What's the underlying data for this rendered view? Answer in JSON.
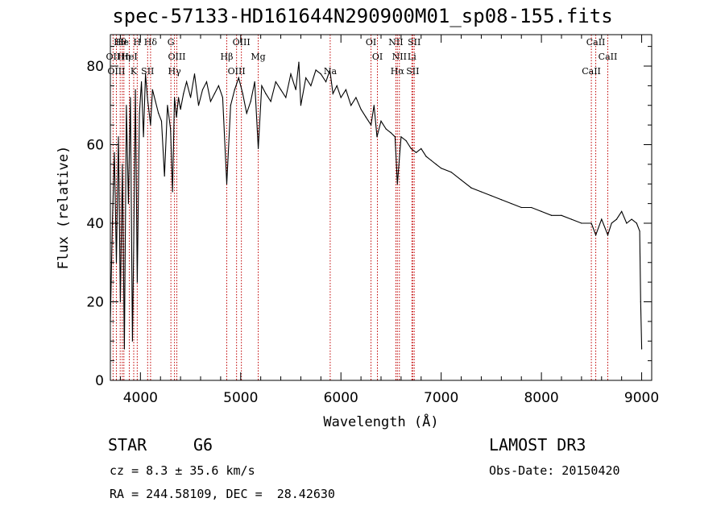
{
  "chart_data": {
    "type": "line",
    "title": "spec-57133-HD161644N290900M01_sp08-155.fits",
    "xlabel": "Wavelength (Å)",
    "ylabel": "Flux (relative)",
    "xlim": [
      3700,
      9100
    ],
    "ylim": [
      0,
      88
    ],
    "xticks": [
      4000,
      5000,
      6000,
      7000,
      8000,
      9000
    ],
    "xtick_labels": [
      "4000",
      "5000",
      "6000",
      "7000",
      "8000",
      "9000"
    ],
    "yticks": [
      0,
      20,
      40,
      60,
      80
    ],
    "ytick_labels": [
      "0",
      "20",
      "40",
      "60",
      "80"
    ],
    "series": [
      {
        "name": "spectrum",
        "x": [
          3700,
          3720,
          3740,
          3760,
          3780,
          3800,
          3820,
          3840,
          3860,
          3880,
          3900,
          3920,
          3933,
          3950,
          3968,
          3990,
          4010,
          4030,
          4050,
          4070,
          4101,
          4120,
          4150,
          4180,
          4210,
          4240,
          4270,
          4300,
          4320,
          4340,
          4360,
          4380,
          4400,
          4430,
          4460,
          4500,
          4540,
          4580,
          4620,
          4660,
          4700,
          4740,
          4780,
          4820,
          4861,
          4900,
          4940,
          4980,
          5020,
          5060,
          5100,
          5140,
          5175,
          5210,
          5250,
          5300,
          5350,
          5400,
          5450,
          5500,
          5550,
          5580,
          5600,
          5650,
          5700,
          5750,
          5800,
          5850,
          5890,
          5920,
          5960,
          6000,
          6050,
          6100,
          6150,
          6200,
          6250,
          6300,
          6330,
          6360,
          6400,
          6450,
          6500,
          6540,
          6563,
          6600,
          6650,
          6700,
          6750,
          6800,
          6850,
          6900,
          6950,
          7000,
          7100,
          7200,
          7300,
          7400,
          7500,
          7600,
          7700,
          7800,
          7900,
          8000,
          8100,
          8200,
          8300,
          8400,
          8498,
          8542,
          8600,
          8662,
          8700,
          8750,
          8800,
          8850,
          8900,
          8950,
          8980,
          8990,
          9000
        ],
        "y": [
          15,
          40,
          58,
          30,
          62,
          20,
          55,
          8,
          70,
          45,
          72,
          10,
          35,
          74,
          25,
          68,
          76,
          62,
          78,
          72,
          65,
          74,
          71,
          68,
          66,
          52,
          70,
          64,
          48,
          72,
          67,
          72,
          69,
          73,
          76,
          72,
          78,
          70,
          74,
          76,
          71,
          73,
          75,
          72,
          50,
          70,
          74,
          77,
          73,
          68,
          71,
          76,
          59,
          75,
          73,
          71,
          76,
          74,
          72,
          78,
          74,
          81,
          70,
          77,
          75,
          79,
          78,
          76,
          79,
          73,
          75,
          72,
          74,
          70,
          72,
          69,
          67,
          65,
          70,
          62,
          66,
          64,
          63,
          62,
          50,
          62,
          61,
          59,
          58,
          59,
          57,
          56,
          55,
          54,
          53,
          51,
          49,
          48,
          47,
          46,
          45,
          44,
          44,
          43,
          42,
          42,
          41,
          40,
          40,
          37,
          41,
          37,
          40,
          41,
          43,
          40,
          41,
          40,
          38,
          20,
          8
        ]
      }
    ],
    "lines": [
      {
        "label": "Hθ",
        "x": 3798
      },
      {
        "label": "OII",
        "x": 3727
      },
      {
        "label": "OIII",
        "x": 3760
      },
      {
        "label": "He",
        "x": 3819
      },
      {
        "label": "Hη",
        "x": 3835
      },
      {
        "label": "K",
        "x": 3933
      },
      {
        "label": "H",
        "x": 3968
      },
      {
        "label": "HeI",
        "x": 3889
      },
      {
        "label": "SII",
        "x": 4072
      },
      {
        "label": "Hδ",
        "x": 4101
      },
      {
        "label": "OIII",
        "x": 4363
      },
      {
        "label": "Hγ",
        "x": 4340
      },
      {
        "label": "G",
        "x": 4304
      },
      {
        "label": "Hβ",
        "x": 4861
      },
      {
        "label": "OIII",
        "x": 4959
      },
      {
        "label": "OIII",
        "x": 5007
      },
      {
        "label": "Mg",
        "x": 5175
      },
      {
        "label": "Na",
        "x": 5893
      },
      {
        "label": "OI",
        "x": 6300
      },
      {
        "label": "OI",
        "x": 6364
      },
      {
        "label": "Hα",
        "x": 6563
      },
      {
        "label": "NII",
        "x": 6548
      },
      {
        "label": "NII",
        "x": 6583
      },
      {
        "label": "SII",
        "x": 6716
      },
      {
        "label": "SII",
        "x": 6731
      },
      {
        "label": "Li",
        "x": 6708
      },
      {
        "label": "CaII",
        "x": 8498
      },
      {
        "label": "CaII",
        "x": 8542
      },
      {
        "label": "CaII",
        "x": 8662
      }
    ]
  },
  "info": {
    "class": "STAR",
    "subclass": "G6",
    "survey": "LAMOST DR3",
    "cz": "cz = 8.3 ± 35.6 km/s",
    "obs_date": "Obs-Date: 20150420",
    "coords": "RA = 244.58109, DEC =  28.42630"
  },
  "colors": {
    "axis": "#000000",
    "line": "#000000",
    "marker": "#c00000"
  }
}
